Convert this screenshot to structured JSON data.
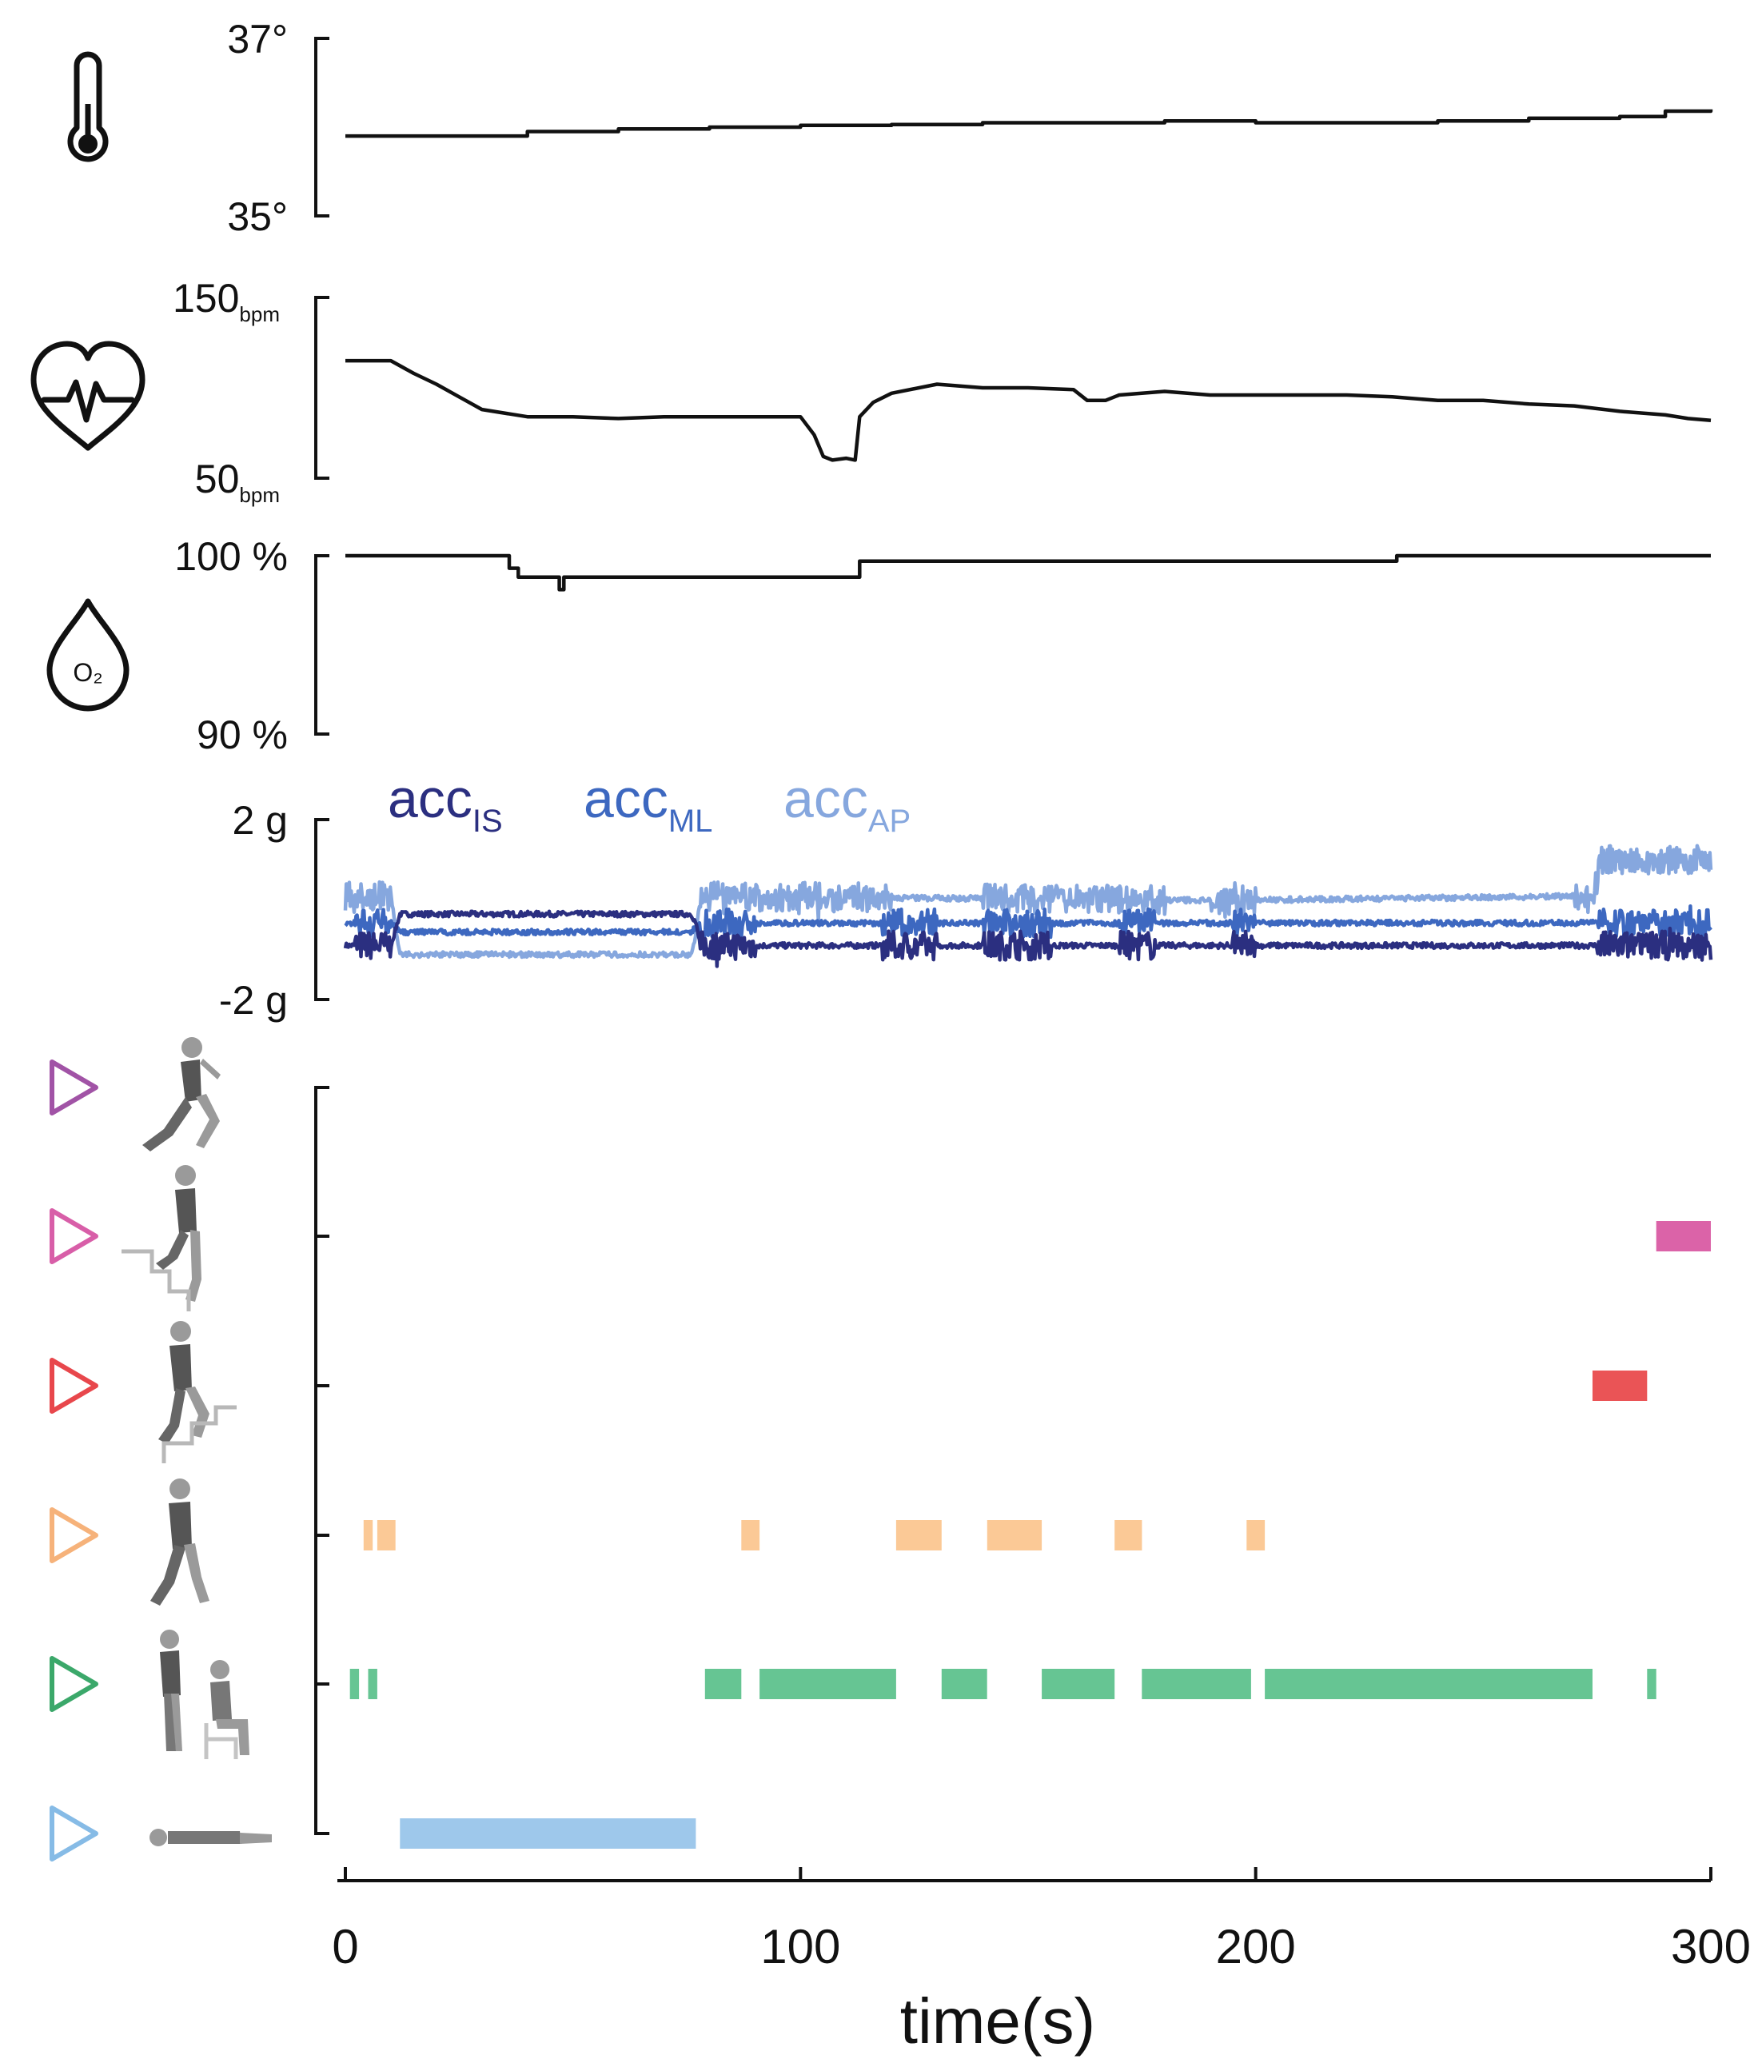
{
  "chart_data": [
    {
      "type": "line",
      "name": "temperature",
      "icon": "thermometer-icon",
      "yticks": [
        "37°",
        "35°"
      ],
      "ylim": [
        35,
        37
      ],
      "series": [
        {
          "color": "#111111",
          "x": [
            0,
            20,
            40,
            60,
            80,
            100,
            120,
            140,
            160,
            180,
            200,
            220,
            240,
            260,
            280,
            290,
            300
          ],
          "y": [
            35.9,
            35.9,
            35.95,
            35.98,
            36.0,
            36.02,
            36.03,
            36.05,
            36.05,
            36.07,
            36.05,
            36.05,
            36.07,
            36.1,
            36.12,
            36.18,
            36.2
          ]
        }
      ]
    },
    {
      "type": "line",
      "name": "heart-rate",
      "icon": "heart-rate-icon",
      "yticks": [
        {
          "value": "150",
          "unit": "bpm"
        },
        {
          "value": "50",
          "unit": "bpm"
        }
      ],
      "ylim": [
        50,
        150
      ],
      "series": [
        {
          "color": "#111111",
          "x": [
            0,
            10,
            15,
            20,
            25,
            30,
            40,
            50,
            60,
            70,
            80,
            90,
            100,
            103,
            105,
            107,
            110,
            112,
            113,
            116,
            120,
            130,
            140,
            150,
            160,
            163,
            167,
            170,
            180,
            190,
            200,
            210,
            220,
            230,
            240,
            250,
            260,
            270,
            280,
            290,
            295,
            300
          ],
          "y": [
            115,
            115,
            108,
            102,
            95,
            88,
            84,
            84,
            83,
            84,
            84,
            84,
            84,
            74,
            62,
            60,
            61,
            60,
            84,
            92,
            97,
            102,
            100,
            100,
            99,
            93,
            93,
            96,
            98,
            96,
            96,
            96,
            96,
            95,
            93,
            93,
            91,
            90,
            87,
            85,
            83,
            82
          ]
        }
      ]
    },
    {
      "type": "line",
      "name": "oxygen-saturation",
      "icon": "oxygen-drop-icon",
      "yticks": [
        "100 %",
        "90 %"
      ],
      "ylim": [
        90,
        100
      ],
      "series": [
        {
          "color": "#111111",
          "x": [
            0,
            35,
            36,
            37,
            38,
            40,
            46,
            47,
            48,
            50,
            112,
            113,
            230,
            231,
            300
          ],
          "y": [
            100,
            100,
            99.3,
            99.3,
            98.8,
            98.8,
            98.8,
            98.1,
            98.8,
            98.8,
            98.8,
            99.7,
            99.7,
            100,
            100
          ]
        }
      ]
    },
    {
      "type": "line",
      "name": "accelerometer",
      "yticks": [
        "2 g",
        "-2 g"
      ],
      "ylim": [
        -2,
        2
      ],
      "legend": [
        {
          "label": "acc",
          "sub": "IS",
          "color": "#2b2f80"
        },
        {
          "label": "acc",
          "sub": "ML",
          "color": "#3d68c0"
        },
        {
          "label": "acc",
          "sub": "AP",
          "color": "#86a7de"
        }
      ],
      "series": [
        {
          "color": "#2b2f80",
          "base": [
            [
              0,
              -0.8
            ],
            [
              10,
              -0.8
            ],
            [
              12,
              -0.1
            ],
            [
              76,
              -0.1
            ],
            [
              77,
              -0.3
            ],
            [
              78,
              -0.8
            ],
            [
              300,
              -0.8
            ]
          ],
          "active": [
            [
              2,
              10
            ],
            [
              78,
              90
            ],
            [
              118,
              130
            ],
            [
              140,
              155
            ],
            [
              170,
              178
            ],
            [
              195,
              200
            ],
            [
              275,
              300
            ]
          ]
        },
        {
          "color": "#3d68c0",
          "base": [
            [
              0,
              -0.3
            ],
            [
              10,
              -0.3
            ],
            [
              12,
              -0.5
            ],
            [
              76,
              -0.5
            ],
            [
              77,
              -0.4
            ],
            [
              78,
              -0.3
            ],
            [
              300,
              -0.3
            ]
          ],
          "active": [
            [
              2,
              10
            ],
            [
              78,
              90
            ],
            [
              118,
              130
            ],
            [
              140,
              155
            ],
            [
              170,
              178
            ],
            [
              195,
              200
            ],
            [
              275,
              300
            ]
          ]
        },
        {
          "color": "#86a7de",
          "base": [
            [
              0,
              0.3
            ],
            [
              10,
              0.3
            ],
            [
              12,
              -1.0
            ],
            [
              76,
              -1.0
            ],
            [
              77,
              -0.6
            ],
            [
              78,
              0.3
            ],
            [
              190,
              0.2
            ],
            [
              274,
              0.3
            ],
            [
              276,
              1.1
            ],
            [
              300,
              1.1
            ]
          ],
          "active": [
            [
              0,
              10
            ],
            [
              78,
              120
            ],
            [
              140,
              180
            ],
            [
              190,
              200
            ],
            [
              270,
              300
            ]
          ]
        }
      ]
    },
    {
      "type": "timeline",
      "name": "activity",
      "xlim": [
        0,
        300
      ],
      "xticks": [
        "0",
        "100",
        "200",
        "300"
      ],
      "xlabel": "time(s)",
      "rows": [
        {
          "icon": "running-figure-icon",
          "marker_color": "#a153a6",
          "segments": []
        },
        {
          "icon": "stairs-up-figure-icon",
          "marker_color": "#d85ea8",
          "segments": [
            {
              "color": "#db63a8",
              "start": 288,
              "end": 300
            }
          ]
        },
        {
          "icon": "stairs-down-figure-icon",
          "marker_color": "#e8474c",
          "segments": [
            {
              "color": "#ea5456",
              "start": 274,
              "end": 286
            }
          ]
        },
        {
          "icon": "walking-figure-icon",
          "marker_color": "#f6b27a",
          "segments": [
            {
              "color": "#fbc996",
              "start": 4,
              "end": 6
            },
            {
              "color": "#fbc996",
              "start": 7,
              "end": 11
            },
            {
              "color": "#fbc996",
              "start": 87,
              "end": 91
            },
            {
              "color": "#fbc996",
              "start": 121,
              "end": 131
            },
            {
              "color": "#fbc996",
              "start": 141,
              "end": 153
            },
            {
              "color": "#fbc996",
              "start": 169,
              "end": 175
            },
            {
              "color": "#fbc996",
              "start": 198,
              "end": 202
            }
          ]
        },
        {
          "icon": "standing-sitting-figure-icon",
          "marker_color": "#3ba86a",
          "segments": [
            {
              "color": "#66c593",
              "start": 1,
              "end": 3
            },
            {
              "color": "#66c593",
              "start": 5,
              "end": 7
            },
            {
              "color": "#66c593",
              "start": 79,
              "end": 87
            },
            {
              "color": "#66c593",
              "start": 91,
              "end": 121
            },
            {
              "color": "#66c593",
              "start": 131,
              "end": 141
            },
            {
              "color": "#66c593",
              "start": 153,
              "end": 169
            },
            {
              "color": "#66c593",
              "start": 175,
              "end": 199
            },
            {
              "color": "#66c593",
              "start": 202,
              "end": 274
            },
            {
              "color": "#66c593",
              "start": 286,
              "end": 288
            }
          ]
        },
        {
          "icon": "lying-figure-icon",
          "marker_color": "#86bbe6",
          "segments": [
            {
              "color": "#9ec8eb",
              "start": 12,
              "end": 77
            }
          ]
        }
      ]
    }
  ]
}
